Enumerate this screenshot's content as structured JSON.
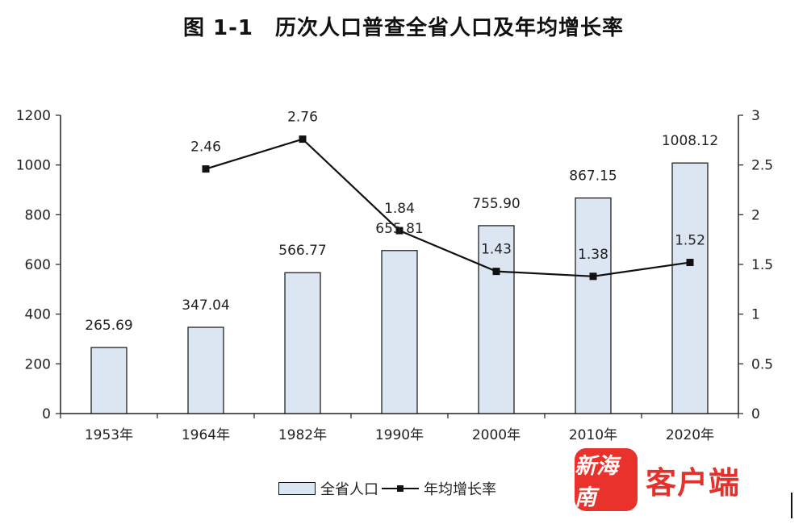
{
  "title": "图 1-1　历次人口普查全省人口及年均增长率",
  "legend": {
    "bar_label": "全省人口",
    "line_label": "年均增长率"
  },
  "watermark": {
    "logo_text": "新海南",
    "text": "客户端"
  },
  "colors": {
    "bar_fill": "#dce6f2",
    "bar_stroke": "#111111",
    "line": "#111111"
  },
  "chart_data": {
    "type": "bar",
    "categories": [
      "1953年",
      "1964年",
      "1982年",
      "1990年",
      "2000年",
      "2010年",
      "2020年"
    ],
    "series": [
      {
        "name": "全省人口",
        "axis": "left",
        "type": "bar",
        "values": [
          265.69,
          347.04,
          566.77,
          655.81,
          755.9,
          867.15,
          1008.12
        ],
        "labels": [
          "265.69",
          "347.04",
          "566.77",
          "655.81",
          "755.90",
          "867.15",
          "1008.12"
        ]
      },
      {
        "name": "年均增长率",
        "axis": "right",
        "type": "line",
        "values": [
          null,
          2.46,
          2.76,
          1.84,
          1.43,
          1.38,
          1.52
        ],
        "labels": [
          "",
          "2.46",
          "2.76",
          "1.84",
          "1.43",
          "1.38",
          "1.52"
        ]
      }
    ],
    "y_left": {
      "lim": [
        0,
        1200
      ],
      "ticks": [
        "0",
        "200",
        "400",
        "600",
        "800",
        "1000",
        "1200"
      ]
    },
    "y_right": {
      "lim": [
        0,
        3
      ],
      "ticks": [
        "0",
        "0.5",
        "1",
        "1.5",
        "2",
        "2.5",
        "3"
      ]
    },
    "grid": false,
    "legend_position": "bottom-center"
  }
}
